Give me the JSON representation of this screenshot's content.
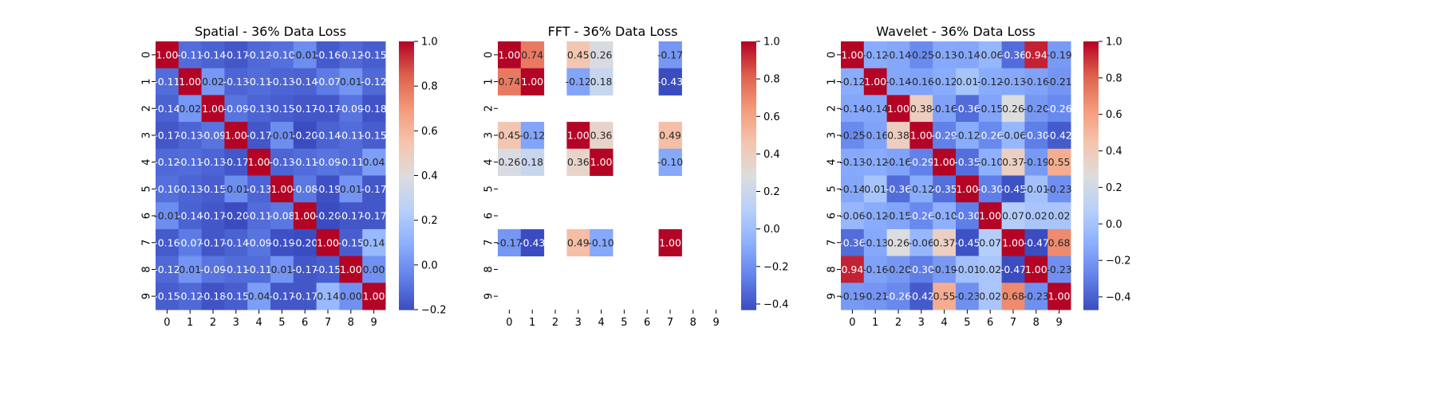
{
  "chart_data": [
    {
      "type": "heatmap",
      "title": "Spatial - 36% Data Loss",
      "x_tick_labels": [
        "0",
        "1",
        "2",
        "3",
        "4",
        "5",
        "6",
        "7",
        "8",
        "9"
      ],
      "y_tick_labels": [
        "0",
        "1",
        "2",
        "3",
        "4",
        "5",
        "6",
        "7",
        "8",
        "9"
      ],
      "colormap": "coolwarm",
      "vmin": -0.2,
      "vmax": 1.0,
      "colorbar_ticks": [
        "-0.2",
        "0.0",
        "0.2",
        "0.4",
        "0.6",
        "0.8",
        "1.0"
      ],
      "matrix": [
        [
          1.0,
          -0.11,
          -0.14,
          -0.17,
          -0.12,
          -0.1,
          -0.01,
          -0.16,
          -0.12,
          -0.15
        ],
        [
          -0.11,
          1.0,
          0.02,
          -0.13,
          -0.11,
          -0.13,
          -0.14,
          -0.07,
          0.01,
          -0.12
        ],
        [
          -0.14,
          0.02,
          1.0,
          -0.09,
          -0.13,
          -0.15,
          -0.17,
          -0.17,
          -0.09,
          -0.18
        ],
        [
          -0.17,
          -0.13,
          -0.09,
          1.0,
          -0.17,
          -0.01,
          -0.2,
          -0.14,
          -0.11,
          -0.15
        ],
        [
          -0.12,
          -0.11,
          -0.13,
          -0.17,
          1.0,
          -0.13,
          -0.11,
          -0.09,
          -0.11,
          0.04
        ],
        [
          -0.1,
          -0.13,
          -0.15,
          -0.01,
          -0.13,
          1.0,
          -0.08,
          -0.19,
          0.01,
          -0.17
        ],
        [
          -0.01,
          -0.14,
          -0.17,
          -0.2,
          -0.11,
          -0.08,
          1.0,
          -0.2,
          -0.17,
          -0.17
        ],
        [
          -0.16,
          -0.07,
          -0.17,
          -0.14,
          -0.09,
          -0.19,
          -0.2,
          1.0,
          -0.15,
          0.14
        ],
        [
          -0.12,
          0.01,
          -0.09,
          -0.11,
          -0.11,
          0.01,
          -0.17,
          -0.15,
          1.0,
          0.0
        ],
        [
          -0.15,
          -0.12,
          -0.18,
          -0.15,
          0.04,
          -0.17,
          -0.17,
          0.14,
          0.0,
          1.0
        ]
      ]
    },
    {
      "type": "heatmap",
      "title": "FFT - 36% Data Loss",
      "x_tick_labels": [
        "0",
        "1",
        "2",
        "3",
        "4",
        "5",
        "6",
        "7",
        "8",
        "9"
      ],
      "y_tick_labels": [
        "0",
        "1",
        "2",
        "3",
        "4",
        "5",
        "6",
        "7",
        "8",
        "9"
      ],
      "colormap": "coolwarm",
      "vmin": -0.43,
      "vmax": 1.0,
      "colorbar_ticks": [
        "-0.4",
        "-0.2",
        "0.0",
        "0.2",
        "0.4",
        "0.6",
        "0.8",
        "1.0"
      ],
      "matrix": [
        [
          1.0,
          0.74,
          null,
          0.45,
          0.26,
          null,
          null,
          -0.17,
          null,
          null
        ],
        [
          0.74,
          1.0,
          null,
          -0.12,
          0.18,
          null,
          null,
          -0.43,
          null,
          null
        ],
        [
          null,
          null,
          null,
          null,
          null,
          null,
          null,
          null,
          null,
          null
        ],
        [
          0.45,
          -0.12,
          null,
          1.0,
          0.36,
          null,
          null,
          0.49,
          null,
          null
        ],
        [
          0.26,
          0.18,
          null,
          0.36,
          1.0,
          null,
          null,
          -0.1,
          null,
          null
        ],
        [
          null,
          null,
          null,
          null,
          null,
          null,
          null,
          null,
          null,
          null
        ],
        [
          null,
          null,
          null,
          null,
          null,
          null,
          null,
          null,
          null,
          null
        ],
        [
          -0.17,
          -0.43,
          null,
          0.49,
          -0.1,
          null,
          null,
          1.0,
          null,
          null
        ],
        [
          null,
          null,
          null,
          null,
          null,
          null,
          null,
          null,
          null,
          null
        ],
        [
          null,
          null,
          null,
          null,
          null,
          null,
          null,
          null,
          null,
          null
        ]
      ]
    },
    {
      "type": "heatmap",
      "title": "Wavelet - 36% Data Loss",
      "x_tick_labels": [
        "0",
        "1",
        "2",
        "3",
        "4",
        "5",
        "6",
        "7",
        "8",
        "9"
      ],
      "y_tick_labels": [
        "0",
        "1",
        "2",
        "3",
        "4",
        "5",
        "6",
        "7",
        "8",
        "9"
      ],
      "colormap": "coolwarm",
      "vmin": -0.47,
      "vmax": 1.0,
      "colorbar_ticks": [
        "-0.4",
        "-0.2",
        "0.0",
        "0.2",
        "0.4",
        "0.6",
        "0.8",
        "1.0"
      ],
      "matrix": [
        [
          1.0,
          -0.12,
          -0.14,
          -0.25,
          -0.13,
          -0.14,
          -0.06,
          -0.36,
          0.94,
          -0.19
        ],
        [
          -0.12,
          1.0,
          -0.14,
          -0.16,
          -0.12,
          0.01,
          -0.12,
          -0.13,
          -0.16,
          -0.21
        ],
        [
          -0.14,
          -0.14,
          1.0,
          0.38,
          -0.16,
          -0.36,
          -0.15,
          0.26,
          -0.2,
          -0.26
        ],
        [
          -0.25,
          -0.16,
          0.38,
          1.0,
          -0.29,
          -0.12,
          -0.26,
          -0.06,
          -0.3,
          -0.42
        ],
        [
          -0.13,
          -0.12,
          -0.16,
          -0.29,
          1.0,
          -0.35,
          -0.1,
          0.37,
          -0.19,
          0.55
        ],
        [
          -0.14,
          0.01,
          -0.36,
          -0.12,
          -0.35,
          1.0,
          -0.3,
          -0.45,
          -0.01,
          -0.23
        ],
        [
          -0.06,
          -0.12,
          -0.15,
          -0.26,
          -0.1,
          -0.3,
          1.0,
          0.07,
          0.02,
          0.02
        ],
        [
          -0.36,
          -0.13,
          0.26,
          -0.06,
          0.37,
          -0.45,
          0.07,
          1.0,
          -0.47,
          0.68
        ],
        [
          0.94,
          -0.16,
          -0.2,
          -0.3,
          -0.19,
          -0.01,
          0.02,
          -0.47,
          1.0,
          -0.23
        ],
        [
          -0.19,
          -0.21,
          -0.26,
          -0.42,
          0.55,
          -0.23,
          0.02,
          0.68,
          -0.23,
          1.0
        ]
      ]
    }
  ]
}
